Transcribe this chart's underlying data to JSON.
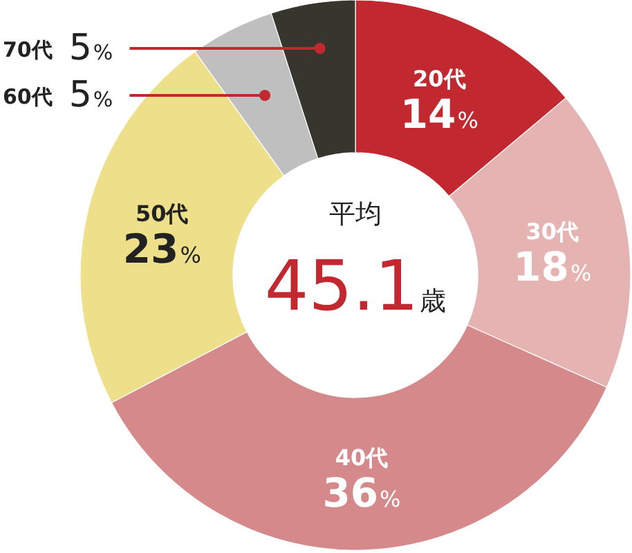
{
  "chart_data": {
    "type": "donut",
    "categories": [
      "20代",
      "30代",
      "40代",
      "50代",
      "60代",
      "70代"
    ],
    "values": [
      14,
      18,
      36,
      23,
      5,
      5
    ],
    "colors": [
      "#c1282f",
      "#e6b3b3",
      "#d6898a",
      "#eee08a",
      "#bfbfbf",
      "#36362f"
    ],
    "value_labels": [
      "14%",
      "18%",
      "36%",
      "23%",
      "5%",
      "5%"
    ],
    "annotations": [
      "平均",
      "45.1歳"
    ]
  }
}
